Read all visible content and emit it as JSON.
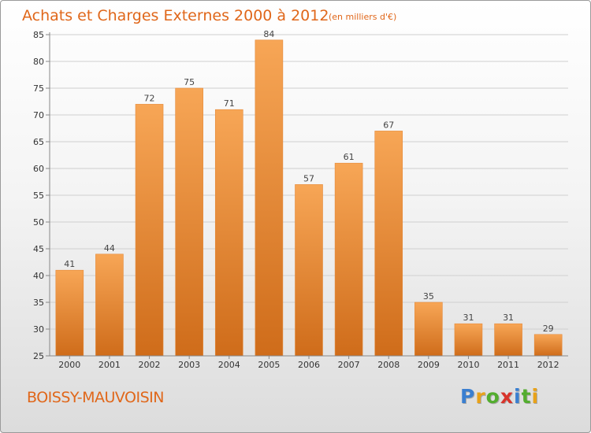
{
  "title": "Achats et Charges Externes 2000 à 2012",
  "unit": "(en milliers d'€)",
  "place": "BOISSY-MAUVOISIN",
  "logo": {
    "letters": [
      {
        "ch": "P",
        "color": "#3a7fd0"
      },
      {
        "ch": "r",
        "color": "#e8a21a"
      },
      {
        "ch": "o",
        "color": "#53ad2f"
      },
      {
        "ch": "x",
        "color": "#d8342b"
      },
      {
        "ch": "i",
        "color": "#3a7fd0"
      },
      {
        "ch": "t",
        "color": "#53ad2f"
      },
      {
        "ch": "i",
        "color": "#e8a21a"
      }
    ]
  },
  "colors": {
    "bar_top": "#f7a656",
    "bar_bottom": "#cf6c1a",
    "accent": "#e0671a"
  },
  "chart_data": {
    "type": "bar",
    "title": "Achats et Charges Externes 2000 à 2012",
    "xlabel": "",
    "ylabel": "",
    "categories": [
      "2000",
      "2001",
      "2002",
      "2003",
      "2004",
      "2005",
      "2006",
      "2007",
      "2008",
      "2009",
      "2010",
      "2011",
      "2012"
    ],
    "values": [
      41,
      44,
      72,
      75,
      71,
      84,
      57,
      61,
      67,
      35,
      31,
      31,
      29
    ],
    "ylim": [
      25,
      85
    ],
    "yticks": [
      25,
      30,
      35,
      40,
      45,
      50,
      55,
      60,
      65,
      70,
      75,
      80,
      85
    ],
    "grid": true,
    "legend": "none"
  }
}
